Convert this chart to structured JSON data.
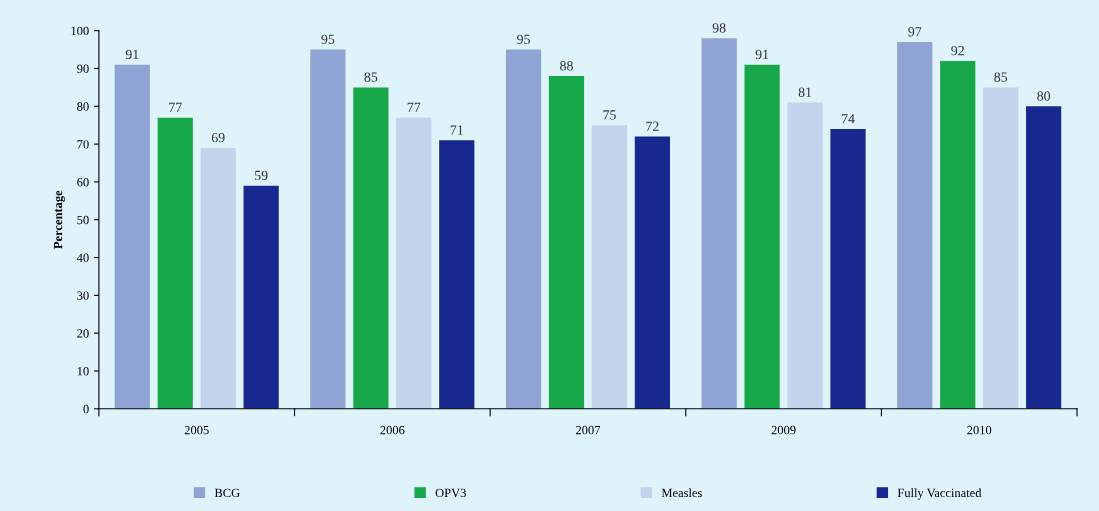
{
  "chart_data": {
    "type": "bar",
    "ylabel": "Percentage",
    "categories": [
      "2005",
      "2006",
      "2007",
      "2009",
      "2010"
    ],
    "series": [
      {
        "name": "BCG",
        "color": "#8fa3d4",
        "values": [
          91,
          95,
          95,
          98,
          97
        ]
      },
      {
        "name": "OPV3",
        "color": "#18a84a",
        "values": [
          77,
          85,
          88,
          91,
          92
        ]
      },
      {
        "name": "Measles",
        "color": "#c3d3ec",
        "values": [
          69,
          77,
          75,
          81,
          85
        ]
      },
      {
        "name": "Fully Vaccinated",
        "color": "#17288f",
        "values": [
          59,
          71,
          72,
          74,
          80
        ]
      }
    ],
    "ylim": [
      0,
      100
    ],
    "yticks": [
      0,
      10,
      20,
      30,
      40,
      50,
      60,
      70,
      80,
      90,
      100
    ],
    "data_labels": true,
    "grid": false,
    "legend": "bottom"
  }
}
